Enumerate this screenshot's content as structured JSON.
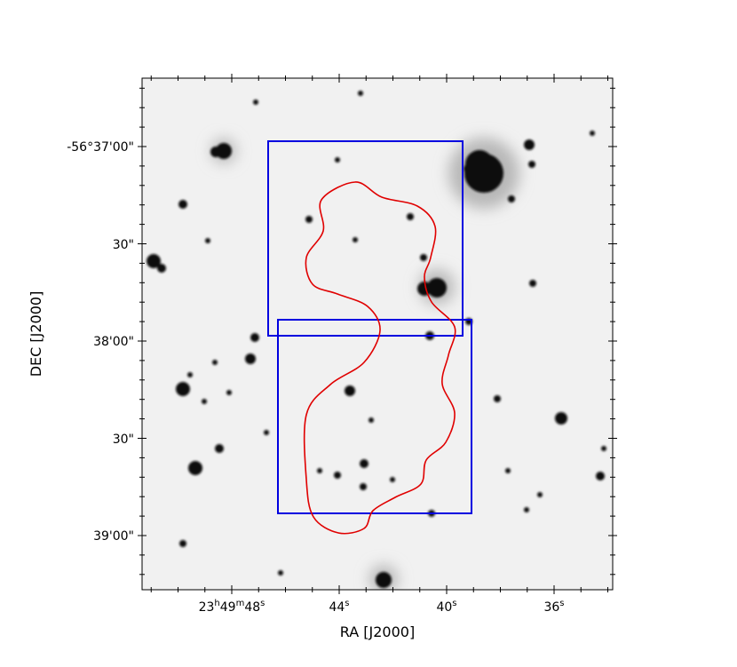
{
  "axes": {
    "x_label": "RA [J2000]",
    "y_label": "DEC [J2000]",
    "x_ticks": [
      [
        "23",
        "h",
        "49",
        "m",
        "48",
        "s"
      ],
      [
        "44",
        "s"
      ],
      [
        "40",
        "s"
      ],
      [
        "36",
        "s"
      ]
    ],
    "y_ticks": [
      "-56°37'00\"",
      "30\"",
      "38'00\"",
      "30\"",
      "39'00\""
    ]
  }
}
